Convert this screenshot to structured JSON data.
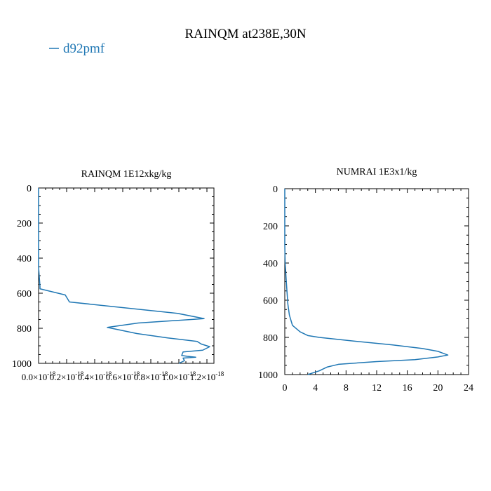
{
  "figure": {
    "title": "RAINQM at238E,30N",
    "legend": [
      {
        "label": "d92pmf",
        "color": "#1f77b4"
      }
    ]
  },
  "chart_data": [
    {
      "type": "line",
      "title": "RAINQM  1E12xkg/kg",
      "xlabel": "",
      "ylabel": "",
      "xlim": [
        0,
        1.25e-18
      ],
      "ylim": [
        1000,
        0
      ],
      "y_inverted": true,
      "grid": false,
      "x_ticks": [
        {
          "value": 0,
          "mantissa": "0.0",
          "base": "×10",
          "exp": "-18"
        },
        {
          "value": 2e-19,
          "mantissa": "0.2",
          "base": "×10",
          "exp": "-18"
        },
        {
          "value": 4e-19,
          "mantissa": "0.4",
          "base": "×10",
          "exp": "-18"
        },
        {
          "value": 6e-19,
          "mantissa": "0.6",
          "base": "×10",
          "exp": "-18"
        },
        {
          "value": 8e-19,
          "mantissa": "0.8",
          "base": "×10",
          "exp": "-18"
        },
        {
          "value": 1e-18,
          "mantissa": "1.0",
          "base": "×10",
          "exp": "-18"
        },
        {
          "value": 1.2e-18,
          "mantissa": "1.2",
          "base": "×10",
          "exp": "-18"
        }
      ],
      "y_ticks": [
        {
          "value": 0,
          "label": "0"
        },
        {
          "value": 200,
          "label": "200"
        },
        {
          "value": 400,
          "label": "400"
        },
        {
          "value": 600,
          "label": "600"
        },
        {
          "value": 800,
          "label": "800"
        },
        {
          "value": 1000,
          "label": "1000"
        }
      ],
      "series": [
        {
          "name": "d92pmf",
          "color": "#1f77b4",
          "points": [
            [
              0,
              0
            ],
            [
              0,
              300
            ],
            [
              0,
              450
            ],
            [
              1e-20,
              560
            ],
            [
              1e-20,
              575
            ],
            [
              1.9e-19,
              610
            ],
            [
              2.2e-19,
              650
            ],
            [
              9.9e-19,
              715
            ],
            [
              1.18e-18,
              745
            ],
            [
              7.1e-19,
              770
            ],
            [
              4.9e-19,
              795
            ],
            [
              7e-19,
              830
            ],
            [
              9.2e-19,
              855
            ],
            [
              1.13e-18,
              875
            ],
            [
              1.16e-18,
              890
            ],
            [
              1.22e-18,
              905
            ],
            [
              1.17e-18,
              925
            ],
            [
              1.03e-18,
              935
            ],
            [
              1.02e-18,
              955
            ],
            [
              1.06e-18,
              960
            ],
            [
              1.12e-18,
              965
            ],
            [
              1.03e-18,
              970
            ],
            [
              1.04e-18,
              985
            ],
            [
              1e-18,
              1000
            ]
          ]
        }
      ]
    },
    {
      "type": "line",
      "title": "NUMRAI  1E3x1/kg",
      "xlabel": "",
      "ylabel": "",
      "xlim": [
        0,
        24
      ],
      "ylim": [
        1000,
        0
      ],
      "y_inverted": true,
      "grid": false,
      "x_ticks": [
        {
          "value": 0,
          "label": "0"
        },
        {
          "value": 4,
          "label": "4"
        },
        {
          "value": 8,
          "label": "8"
        },
        {
          "value": 12,
          "label": "12"
        },
        {
          "value": 16,
          "label": "16"
        },
        {
          "value": 20,
          "label": "20"
        },
        {
          "value": 24,
          "label": "24"
        }
      ],
      "y_ticks": [
        {
          "value": 0,
          "label": "0"
        },
        {
          "value": 200,
          "label": "200"
        },
        {
          "value": 400,
          "label": "400"
        },
        {
          "value": 600,
          "label": "600"
        },
        {
          "value": 800,
          "label": "800"
        },
        {
          "value": 1000,
          "label": "1000"
        }
      ],
      "series": [
        {
          "name": "d92pmf",
          "color": "#1f77b4",
          "points": [
            [
              0,
              0
            ],
            [
              0,
              300
            ],
            [
              0.05,
              400
            ],
            [
              0.2,
              500
            ],
            [
              0.4,
              620
            ],
            [
              0.6,
              680
            ],
            [
              1.0,
              735
            ],
            [
              2.0,
              770
            ],
            [
              3.0,
              790
            ],
            [
              4.5,
              800
            ],
            [
              9.0,
              820
            ],
            [
              14.0,
              840
            ],
            [
              18.0,
              860
            ],
            [
              20.0,
              875
            ],
            [
              21.3,
              895
            ],
            [
              20.0,
              905
            ],
            [
              17.0,
              920
            ],
            [
              12.0,
              930
            ],
            [
              7.0,
              945
            ],
            [
              5.5,
              960
            ],
            [
              4.5,
              980
            ],
            [
              3.0,
              1000
            ]
          ]
        }
      ]
    }
  ]
}
